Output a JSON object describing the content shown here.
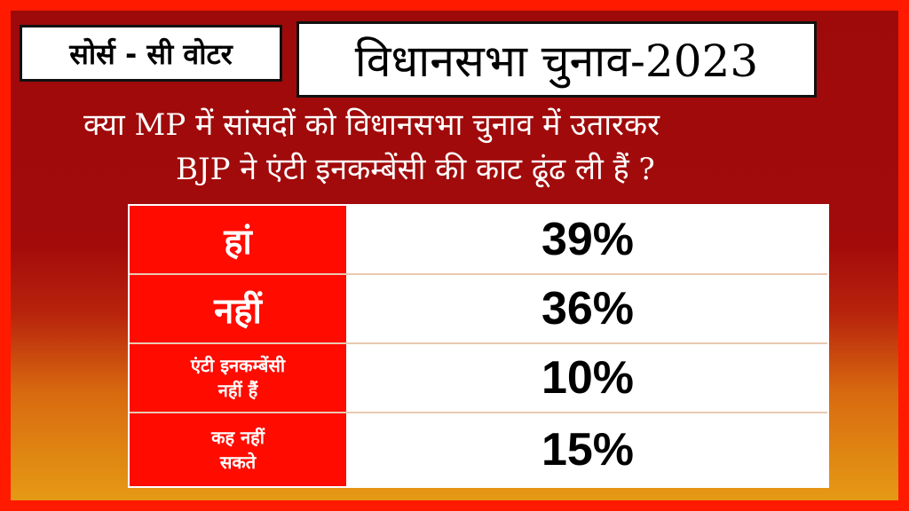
{
  "source_label": "सोर्स - सी वोटर",
  "title": "विधानसभा चुनाव-2023",
  "question": {
    "line1": "क्या MP में सांसदों को विधानसभा चुनाव में उतारकर",
    "line2": "BJP ने एंटी इनकम्बेंसी की काट ढूंढ ली हैं ?"
  },
  "results": [
    {
      "label": "हां",
      "value": "39%"
    },
    {
      "label": "नहीं",
      "value": "36%"
    },
    {
      "label_line1": "एंटी इनकम्बेंसी",
      "label_line2": "नहीं हैं",
      "value": "10%"
    },
    {
      "label_line1": "कह नहीं",
      "label_line2": "सकते",
      "value": "15%"
    }
  ],
  "colors": {
    "outer_border": "#ff1a00",
    "background_top": "#9e0a0a",
    "background_bottom": "#e59a14",
    "label_cell": "#ff0b00",
    "value_cell": "#ffffff"
  }
}
